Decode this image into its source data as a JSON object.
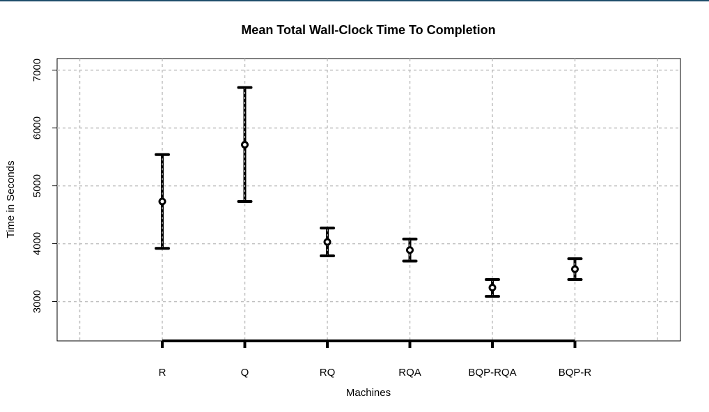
{
  "chart_data": {
    "type": "errorbar",
    "title": "Mean Total Wall-Clock Time To Completion",
    "xlabel": "Machines",
    "ylabel": "Time in Seconds",
    "categories": [
      "R",
      "Q",
      "RQ",
      "RQA",
      "BQP-RQA",
      "BQP-R"
    ],
    "series": [
      {
        "mean": [
          4730,
          5710,
          4030,
          3890,
          3240,
          3560
        ],
        "lower": [
          3920,
          4730,
          3790,
          3700,
          3090,
          3380
        ],
        "upper": [
          5540,
          6700,
          4270,
          4080,
          3380,
          3740
        ]
      }
    ],
    "y_ticks": [
      3000,
      4000,
      5000,
      6000,
      7000
    ],
    "ylim": [
      2320,
      7200
    ],
    "grid": true,
    "colors": {
      "marks": "#000000",
      "grid": "#c0c0c0",
      "accent_bar": "#1f4e6b"
    }
  }
}
